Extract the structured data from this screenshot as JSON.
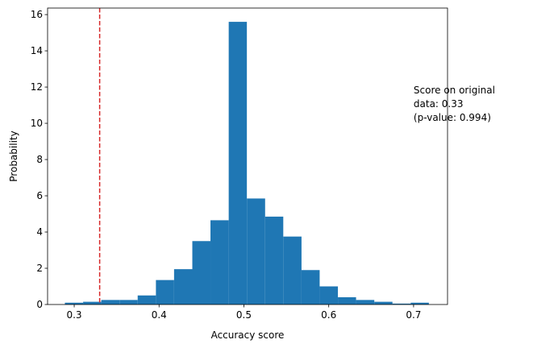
{
  "chart_data": {
    "type": "histogram",
    "xlabel": "Accuracy score",
    "ylabel": "Probability",
    "bins": [
      0.289,
      0.3105,
      0.3319,
      0.3534,
      0.3748,
      0.3963,
      0.4177,
      0.4392,
      0.4606,
      0.4821,
      0.5035,
      0.525,
      0.5464,
      0.5679,
      0.5893,
      0.6108,
      0.6322,
      0.6537,
      0.6751,
      0.6966,
      0.718
    ],
    "values": [
      0.1,
      0.15,
      0.25,
      0.25,
      0.5,
      1.35,
      1.95,
      3.5,
      4.65,
      15.6,
      5.85,
      4.85,
      3.75,
      1.9,
      1.0,
      0.4,
      0.25,
      0.15,
      0.05,
      0.1
    ],
    "color": "#1f77b4",
    "xlim": [
      0.2686,
      0.74
    ],
    "ylim": [
      0,
      16.36
    ],
    "xticks": [
      0.3,
      0.4,
      0.5,
      0.6,
      0.7
    ],
    "yticks": [
      0,
      2,
      4,
      6,
      8,
      10,
      12,
      14,
      16
    ],
    "vline": {
      "value": 0.33,
      "color": "#d62728"
    },
    "annotation": {
      "x": 0.7,
      "y": 10,
      "lines": [
        "Score on original",
        "data: 0.33",
        "(p-value: 0.994)"
      ]
    }
  }
}
